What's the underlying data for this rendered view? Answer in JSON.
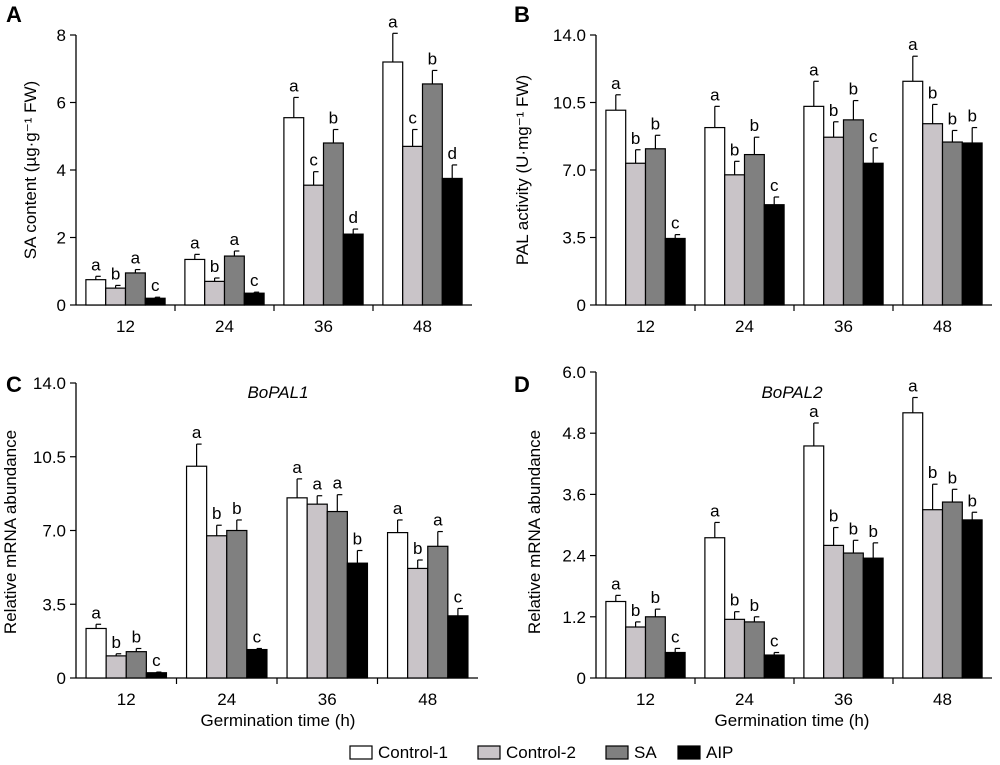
{
  "colors": {
    "Control-1": "#ffffff",
    "Control-2": "#c9c4c8",
    "SA": "#808080",
    "AIP": "#000000"
  },
  "legend": [
    "Control-1",
    "Control-2",
    "SA",
    "AIP"
  ],
  "chart_data": [
    {
      "panel": "A",
      "type": "bar",
      "title": "",
      "ylabel": "SA content (µg·g⁻¹ FW)",
      "xlabel": "",
      "ylim": [
        0,
        8
      ],
      "yticks": [
        "0",
        "2",
        "4",
        "6",
        "8"
      ],
      "categories": [
        "12",
        "24",
        "36",
        "48"
      ],
      "series": [
        {
          "name": "Control-1",
          "values": [
            0.75,
            1.35,
            5.55,
            7.2
          ],
          "errors": [
            0.1,
            0.15,
            0.6,
            0.85
          ],
          "letters": [
            "a",
            "a",
            "a",
            "a"
          ]
        },
        {
          "name": "Control-2",
          "values": [
            0.5,
            0.7,
            3.55,
            4.7
          ],
          "errors": [
            0.08,
            0.1,
            0.4,
            0.5
          ],
          "letters": [
            "b",
            "b",
            "c",
            "c"
          ]
        },
        {
          "name": "SA",
          "values": [
            0.95,
            1.45,
            4.8,
            6.55
          ],
          "errors": [
            0.1,
            0.15,
            0.4,
            0.4
          ],
          "letters": [
            "a",
            "a",
            "b",
            "b"
          ]
        },
        {
          "name": "AIP",
          "values": [
            0.2,
            0.35,
            2.1,
            3.75
          ],
          "errors": [
            0.03,
            0.03,
            0.15,
            0.4
          ],
          "letters": [
            "c",
            "c",
            "d",
            "d"
          ]
        }
      ]
    },
    {
      "panel": "B",
      "type": "bar",
      "title": "",
      "ylabel": "PAL activity (U·mg⁻¹ FW)",
      "xlabel": "",
      "ylim": [
        0,
        14
      ],
      "yticks": [
        "0",
        "3.5",
        "7.0",
        "10.5",
        "14.0"
      ],
      "categories": [
        "12",
        "24",
        "36",
        "48"
      ],
      "series": [
        {
          "name": "Control-1",
          "values": [
            10.1,
            9.2,
            10.3,
            11.6
          ],
          "errors": [
            0.8,
            1.1,
            1.3,
            1.3
          ],
          "letters": [
            "a",
            "a",
            "a",
            "a"
          ]
        },
        {
          "name": "Control-2",
          "values": [
            7.35,
            6.75,
            8.7,
            9.4
          ],
          "errors": [
            0.7,
            0.7,
            0.8,
            1.0
          ],
          "letters": [
            "b",
            "b",
            "b",
            "b"
          ]
        },
        {
          "name": "SA",
          "values": [
            8.1,
            7.8,
            9.6,
            8.45
          ],
          "errors": [
            0.7,
            0.9,
            1.0,
            0.6
          ],
          "letters": [
            "b",
            "b",
            "b",
            "b"
          ]
        },
        {
          "name": "AIP",
          "values": [
            3.45,
            5.2,
            7.35,
            8.4
          ],
          "errors": [
            0.2,
            0.4,
            0.8,
            0.8
          ],
          "letters": [
            "c",
            "c",
            "c",
            "b"
          ]
        }
      ]
    },
    {
      "panel": "C",
      "type": "bar",
      "title": "BoPAL1",
      "ylabel": "Relative mRNA abundance",
      "xlabel": "Germination time (h)",
      "ylim": [
        0,
        14
      ],
      "yticks": [
        "0",
        "3.5",
        "7.0",
        "10.5",
        "14.0"
      ],
      "categories": [
        "12",
        "24",
        "36",
        "48"
      ],
      "series": [
        {
          "name": "Control-1",
          "values": [
            2.35,
            10.05,
            8.55,
            6.9
          ],
          "errors": [
            0.2,
            1.05,
            0.9,
            0.6
          ],
          "letters": [
            "a",
            "a",
            "a",
            "a"
          ]
        },
        {
          "name": "Control-2",
          "values": [
            1.05,
            6.75,
            8.25,
            5.2
          ],
          "errors": [
            0.1,
            0.5,
            0.4,
            0.4
          ],
          "letters": [
            "b",
            "b",
            "a",
            "b"
          ]
        },
        {
          "name": "SA",
          "values": [
            1.25,
            7.0,
            7.9,
            6.25
          ],
          "errors": [
            0.15,
            0.5,
            0.8,
            0.7
          ],
          "letters": [
            "b",
            "b",
            "a",
            "a"
          ]
        },
        {
          "name": "AIP",
          "values": [
            0.25,
            1.35,
            5.45,
            2.95
          ],
          "errors": [
            0.03,
            0.05,
            0.6,
            0.35
          ],
          "letters": [
            "c",
            "c",
            "b",
            "c"
          ]
        }
      ]
    },
    {
      "panel": "D",
      "type": "bar",
      "title": "BoPAL2",
      "ylabel": "Relative mRNA abundance",
      "xlabel": "Germination time (h)",
      "ylim": [
        0,
        6
      ],
      "yticks": [
        "0",
        "1.2",
        "2.4",
        "3.6",
        "4.8",
        "6.0"
      ],
      "categories": [
        "12",
        "24",
        "36",
        "48"
      ],
      "series": [
        {
          "name": "Control-1",
          "values": [
            1.5,
            2.75,
            4.55,
            5.2
          ],
          "errors": [
            0.12,
            0.3,
            0.45,
            0.3
          ],
          "letters": [
            "a",
            "a",
            "a",
            "a"
          ]
        },
        {
          "name": "Control-2",
          "values": [
            1.0,
            1.15,
            2.6,
            3.3
          ],
          "errors": [
            0.1,
            0.15,
            0.35,
            0.5
          ],
          "letters": [
            "b",
            "b",
            "b",
            "b"
          ]
        },
        {
          "name": "SA",
          "values": [
            1.2,
            1.1,
            2.45,
            3.45
          ],
          "errors": [
            0.15,
            0.1,
            0.25,
            0.25
          ],
          "letters": [
            "b",
            "b",
            "b",
            "b"
          ]
        },
        {
          "name": "AIP",
          "values": [
            0.5,
            0.45,
            2.35,
            3.1
          ],
          "errors": [
            0.08,
            0.05,
            0.3,
            0.15
          ],
          "letters": [
            "c",
            "c",
            "b",
            "b"
          ]
        }
      ]
    }
  ]
}
